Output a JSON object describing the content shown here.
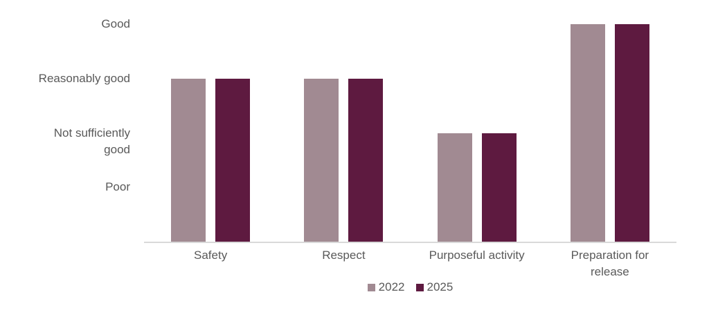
{
  "chart_data": {
    "type": "bar",
    "title": "",
    "categories": [
      "Safety",
      "Respect",
      "Purposeful activity",
      "Preparation for release"
    ],
    "series": [
      {
        "name": "2022",
        "color": "#a18a92",
        "values": [
          3,
          3,
          2,
          4
        ]
      },
      {
        "name": "2025",
        "color": "#5e1a40",
        "values": [
          3,
          3,
          2,
          4
        ]
      }
    ],
    "y_ticks": [
      {
        "label": "Good",
        "value": 4
      },
      {
        "label": "Reasonably good",
        "value": 3
      },
      {
        "label": "Not sufficiently good",
        "value": 2
      },
      {
        "label": "Poor",
        "value": 1
      }
    ],
    "ylim": [
      0,
      4
    ],
    "grid": false,
    "legend_position": "bottom",
    "colors": {
      "axis_line": "#d9d9d9",
      "text": "#595959",
      "background": "#ffffff"
    }
  }
}
